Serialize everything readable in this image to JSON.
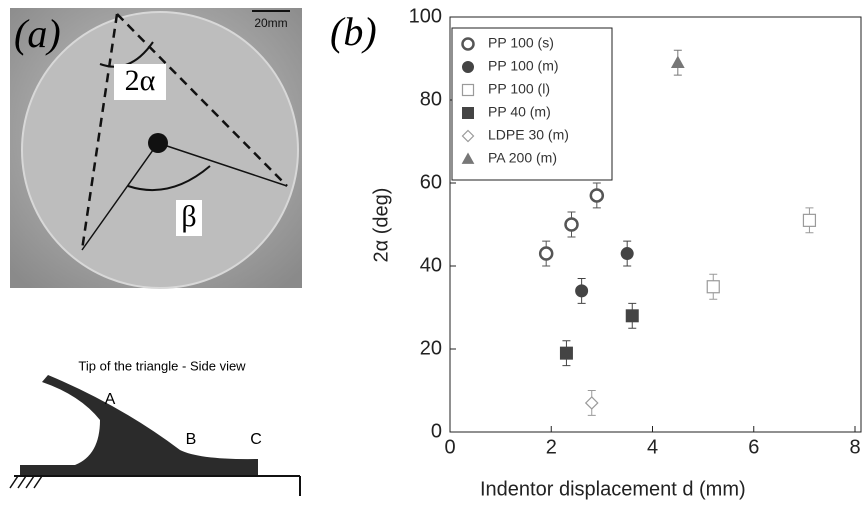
{
  "photo": {
    "label": "(a)",
    "scale": "20mm",
    "angle_labels": [
      "2α",
      "β"
    ]
  },
  "diagram": {
    "title": "Tip of the triangle - Side view",
    "points": [
      "A",
      "B",
      "C"
    ]
  },
  "chart_data": {
    "type": "scatter",
    "panel_label": "(b)",
    "x_label": "Indentor displacement d (mm)",
    "y_label": "2α (deg)",
    "xlim": [
      0,
      8
    ],
    "ylim": [
      0,
      100
    ],
    "xticks": [
      0,
      2,
      4,
      6,
      8
    ],
    "yticks": [
      0,
      20,
      40,
      60,
      80,
      100
    ],
    "legend": "upper left",
    "series": [
      {
        "name": "PP 100 (s)",
        "color": "#555555",
        "marker": "circle",
        "filled": false,
        "x": [
          1.9,
          2.4,
          2.9
        ],
        "values": [
          43,
          50,
          57
        ],
        "errors": [
          3,
          3,
          3
        ]
      },
      {
        "name": "PP 100 (m)",
        "color": "#444444",
        "marker": "circle",
        "filled": true,
        "x": [
          2.6,
          3.5
        ],
        "values": [
          34,
          43
        ],
        "errors": [
          3,
          3
        ]
      },
      {
        "name": "PP 100 (l)",
        "color": "#9a9a9a",
        "marker": "square",
        "filled": false,
        "x": [
          5.2,
          7.1
        ],
        "values": [
          35,
          51
        ],
        "errors": [
          3,
          3
        ]
      },
      {
        "name": "PP 40 (m)",
        "color": "#444444",
        "marker": "square",
        "filled": true,
        "x": [
          2.3,
          3.6
        ],
        "values": [
          19,
          28
        ],
        "errors": [
          3,
          3
        ]
      },
      {
        "name": "LDPE 30 (m)",
        "color": "#9a9a9a",
        "marker": "diamond",
        "filled": false,
        "x": [
          2.8
        ],
        "values": [
          7
        ],
        "errors": [
          3
        ]
      },
      {
        "name": "PA 200 (m)",
        "color": "#777777",
        "marker": "triangle",
        "filled": true,
        "x": [
          4.5
        ],
        "values": [
          89
        ],
        "errors": [
          3
        ]
      }
    ]
  }
}
